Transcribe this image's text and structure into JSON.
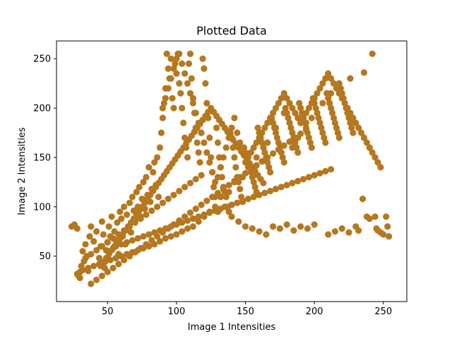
{
  "chart_data": {
    "type": "scatter",
    "title": "Plotted Data",
    "xlabel": "Image 1 Intensities",
    "ylabel": "Image 2 Intensities",
    "xlim": [
      13,
      267
    ],
    "ylim": [
      4,
      268
    ],
    "xticks": [
      50,
      100,
      150,
      200,
      250
    ],
    "yticks": [
      50,
      100,
      150,
      200,
      250
    ],
    "grid": false,
    "marker_color": "#b5771f",
    "series": [
      {
        "x": [
          24,
          26,
          28,
          29,
          30,
          31,
          32,
          33,
          34,
          35,
          36,
          37,
          38,
          40,
          42,
          44,
          45,
          46,
          47,
          48,
          49,
          50,
          51,
          52,
          53,
          54,
          55,
          56,
          57,
          58,
          59,
          60,
          61,
          62,
          63,
          64,
          65,
          66,
          67,
          68,
          69,
          70,
          71,
          72,
          73,
          74,
          75,
          76,
          77,
          78,
          79,
          80,
          81,
          82,
          83,
          84,
          85,
          86,
          87,
          88,
          89,
          90,
          91,
          92,
          93,
          94,
          95,
          96,
          97,
          98,
          99,
          100,
          101,
          102,
          103,
          104,
          105,
          106,
          107,
          108,
          109,
          110,
          111,
          112,
          113,
          114,
          115,
          116,
          117,
          118,
          119,
          120,
          121,
          122,
          123,
          124,
          125,
          126,
          127,
          128,
          129,
          130,
          131,
          132,
          133,
          134,
          135,
          136,
          137,
          138,
          139,
          140,
          141,
          142,
          143,
          144,
          145,
          146,
          147,
          148,
          149,
          150,
          151,
          152,
          153,
          154,
          155,
          156,
          157,
          158,
          159,
          160,
          161,
          162,
          163,
          164,
          165,
          166,
          167,
          168,
          169,
          170,
          171,
          172,
          173,
          174,
          175,
          176,
          177,
          178,
          179,
          180,
          181,
          182,
          183,
          184,
          185,
          186,
          187,
          188,
          189,
          190,
          191,
          192,
          193,
          194,
          195,
          196,
          197,
          198,
          199,
          200,
          201,
          202,
          203,
          204,
          205,
          206,
          207,
          208,
          209,
          210,
          211,
          212,
          213,
          214,
          215,
          216,
          217,
          218,
          219,
          220,
          221,
          222,
          223,
          224,
          225,
          226,
          227,
          228
        ],
        "y": [
          80,
          82,
          78,
          30,
          28,
          40,
          55,
          45,
          62,
          50,
          35,
          70,
          80,
          65,
          75,
          48,
          60,
          85,
          72,
          38,
          56,
          64,
          80,
          70,
          90,
          58,
          75,
          66,
          84,
          52,
          95,
          88,
          70,
          100,
          62,
          92,
          80,
          104,
          74,
          110,
          96,
          86,
          115,
          100,
          120,
          90,
          108,
          125,
          98,
          130,
          112,
          140,
          105,
          118,
          135,
          145,
          122,
          150,
          110,
          160,
          175,
          190,
          205,
          220,
          255,
          240,
          230,
          250,
          210,
          200,
          245,
          235,
          255,
          225,
          215,
          200,
          185,
          170,
          160,
          150,
          245,
          255,
          230,
          210,
          195,
          180,
          165,
          155,
          145,
          175,
          250,
          240,
          225,
          205,
          190,
          170,
          150,
          135,
          120,
          110,
          180,
          165,
          150,
          140,
          130,
          120,
          115,
          110,
          100,
          95,
          175,
          170,
          160,
          150,
          140,
          130,
          125,
          118,
          110,
          105,
          160,
          155,
          150,
          145,
          140,
          135,
          130,
          125,
          120,
          115,
          180,
          175,
          170,
          165,
          160,
          155,
          150,
          145,
          140,
          135,
          190,
          185,
          180,
          175,
          170,
          165,
          160,
          155,
          150,
          145,
          200,
          195,
          190,
          185,
          180,
          175,
          170,
          165,
          160,
          155,
          205,
          200,
          195,
          190,
          185,
          180,
          175,
          170,
          165,
          160,
          210,
          205,
          200,
          195,
          190,
          185,
          180,
          175,
          170,
          165,
          215,
          210,
          205,
          200,
          195,
          190,
          185,
          180,
          175,
          170,
          220,
          215,
          210,
          205,
          200,
          195,
          190,
          185,
          180,
          175
        ]
      },
      {
        "x": [
          130,
          135,
          140,
          145,
          150,
          155,
          160,
          165,
          170,
          175,
          180,
          185,
          190,
          195,
          200,
          210,
          215,
          220,
          225,
          230,
          232,
          235,
          238,
          240,
          245,
          248,
          250,
          252,
          253,
          254,
          244,
          246,
          242,
          236,
          226,
          218,
          212,
          206,
          198,
          194,
          188,
          184,
          178,
          172,
          166,
          158,
          152,
          148,
          142,
          138,
          132,
          128,
          124,
          120,
          116,
          112,
          108,
          104,
          100,
          96,
          92,
          88,
          84,
          80,
          76,
          72,
          68,
          64,
          60,
          56,
          52,
          48,
          44,
          40,
          36,
          32,
          30,
          28,
          34,
          38,
          42,
          46,
          50,
          54,
          58,
          62,
          66,
          70,
          74,
          78,
          82,
          86,
          90,
          94,
          98,
          102,
          106,
          110,
          114,
          118
        ],
        "y": [
          95,
          100,
          90,
          85,
          80,
          78,
          75,
          72,
          80,
          78,
          82,
          76,
          80,
          78,
          82,
          72,
          75,
          78,
          74,
          80,
          76,
          108,
          90,
          88,
          78,
          74,
          72,
          90,
          80,
          70,
          90,
          76,
          255,
          236,
          230,
          225,
          215,
          205,
          190,
          185,
          170,
          160,
          195,
          180,
          165,
          150,
          140,
          130,
          125,
          115,
          110,
          100,
          95,
          90,
          85,
          80,
          78,
          75,
          72,
          70,
          68,
          65,
          62,
          60,
          58,
          56,
          54,
          52,
          50,
          48,
          46,
          44,
          42,
          40,
          38,
          36,
          34,
          32,
          48,
          52,
          56,
          60,
          64,
          68,
          72,
          76,
          80,
          84,
          88,
          92,
          96,
          100,
          104,
          108,
          112,
          116,
          120,
          124,
          128,
          132
        ]
      },
      {
        "x": [
          90,
          92,
          94,
          96,
          98,
          100,
          102,
          104,
          106,
          108,
          110,
          112,
          114,
          116,
          118,
          120,
          122,
          124,
          126,
          128,
          130,
          132,
          134,
          136,
          138,
          140,
          142,
          144,
          146,
          148,
          150,
          152,
          154,
          156,
          158,
          160,
          162,
          164,
          166,
          168,
          170,
          172,
          174,
          176,
          178,
          180,
          182,
          184,
          186,
          188,
          190,
          192,
          194,
          196,
          198,
          200,
          202,
          204,
          206,
          208,
          210,
          212,
          214,
          216,
          218,
          220,
          222,
          224,
          226,
          228,
          230,
          232,
          234,
          236,
          238,
          240,
          242,
          244,
          246,
          248
        ],
        "y": [
          200,
          210,
          220,
          230,
          240,
          250,
          255,
          245,
          235,
          225,
          215,
          205,
          195,
          185,
          175,
          165,
          155,
          145,
          135,
          125,
          130,
          140,
          150,
          160,
          170,
          180,
          190,
          175,
          165,
          155,
          145,
          150,
          155,
          160,
          165,
          170,
          175,
          180,
          185,
          190,
          195,
          200,
          205,
          210,
          215,
          210,
          205,
          200,
          195,
          190,
          185,
          190,
          195,
          200,
          205,
          210,
          215,
          220,
          225,
          230,
          235,
          230,
          225,
          220,
          215,
          210,
          205,
          200,
          195,
          190,
          185,
          180,
          175,
          170,
          165,
          160,
          155,
          150,
          145,
          140
        ]
      },
      {
        "x": [
          45,
          47,
          49,
          51,
          53,
          55,
          57,
          59,
          61,
          63,
          65,
          67,
          69,
          71,
          73,
          75,
          77,
          79,
          81,
          83,
          85,
          87,
          89,
          91,
          93,
          95,
          97,
          99,
          101,
          103,
          105,
          107,
          109,
          111,
          113,
          115,
          117,
          119,
          121,
          123,
          125,
          127,
          129,
          131,
          133,
          135,
          137,
          139,
          141,
          143,
          145,
          147,
          149,
          151,
          153,
          155,
          157,
          159,
          161,
          163
        ],
        "y": [
          40,
          44,
          48,
          52,
          56,
          60,
          64,
          68,
          72,
          76,
          80,
          84,
          88,
          92,
          96,
          100,
          104,
          108,
          112,
          116,
          120,
          124,
          128,
          132,
          136,
          140,
          144,
          148,
          152,
          156,
          160,
          164,
          168,
          172,
          176,
          180,
          184,
          188,
          192,
          196,
          200,
          196,
          192,
          188,
          184,
          180,
          176,
          172,
          168,
          164,
          160,
          156,
          152,
          148,
          144,
          140,
          136,
          132,
          128,
          124
        ]
      },
      {
        "x": [
          38,
          42,
          46,
          50,
          54,
          58,
          62,
          66,
          70,
          74,
          78,
          82,
          86,
          90,
          94,
          98,
          102,
          106,
          110,
          114,
          118,
          122,
          126,
          130,
          134,
          138,
          142,
          146,
          150,
          154,
          158,
          162,
          166,
          170,
          174,
          178,
          182,
          186,
          190,
          194
        ],
        "y": [
          22,
          26,
          30,
          34,
          38,
          42,
          46,
          50,
          54,
          58,
          62,
          66,
          70,
          74,
          78,
          82,
          86,
          90,
          94,
          98,
          102,
          106,
          110,
          114,
          118,
          122,
          126,
          130,
          134,
          138,
          142,
          146,
          150,
          154,
          158,
          162,
          166,
          170,
          174,
          178
        ]
      },
      {
        "x": [
          56,
          60,
          64,
          68,
          72,
          76,
          80,
          84,
          88,
          92,
          96,
          100,
          104,
          108,
          112,
          116,
          120,
          124,
          128,
          132,
          136,
          140,
          144,
          148,
          152,
          156,
          160,
          164,
          168,
          172,
          176,
          180,
          184,
          188,
          192,
          196,
          200,
          204,
          208,
          212
        ],
        "y": [
          60,
          62,
          64,
          66,
          68,
          70,
          72,
          74,
          76,
          78,
          80,
          82,
          84,
          86,
          88,
          90,
          92,
          94,
          96,
          98,
          100,
          102,
          104,
          106,
          108,
          110,
          112,
          114,
          116,
          118,
          120,
          122,
          124,
          126,
          128,
          130,
          132,
          134,
          136,
          138
        ]
      }
    ]
  }
}
